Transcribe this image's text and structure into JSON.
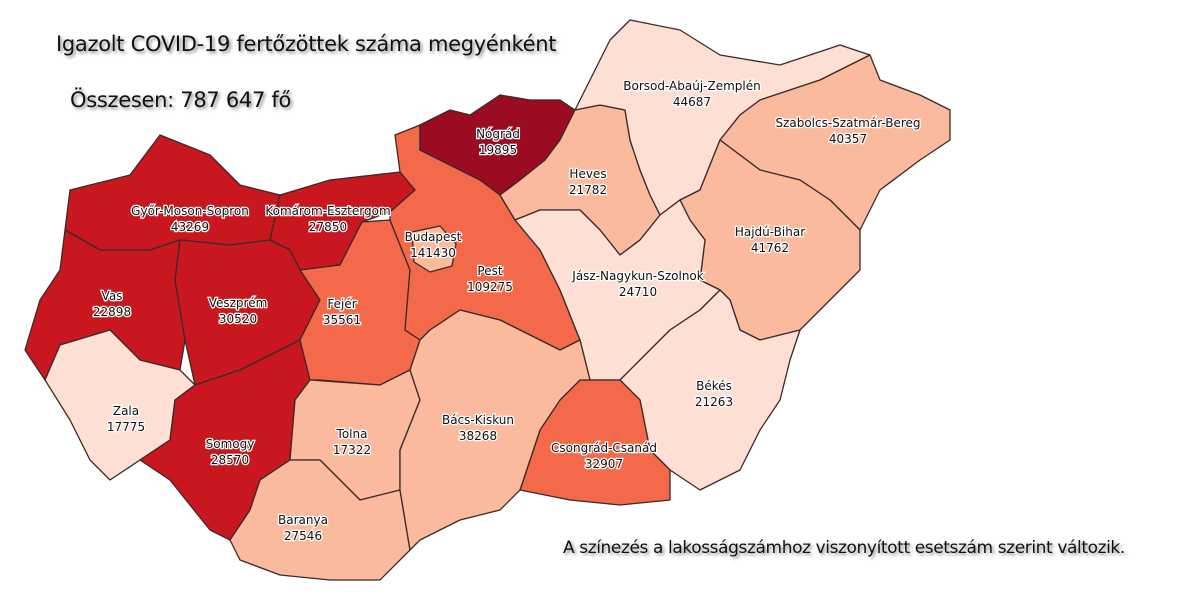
{
  "title": "Igazolt COVID-19 fertőzöttek száma megyénként",
  "total": "Összesen: 787 647 fő",
  "note": "A színezés a lakosságszámhoz viszonyított esetszám szerint változik.",
  "colors": {
    "darkest": "#9b0b22",
    "dark": "#c8171e",
    "orange": "#f4694a",
    "medium": "#fbb99d",
    "light": "#fde0d3"
  },
  "counties": [
    {
      "name": "Győr-Moson-Sopron",
      "value": "43269",
      "shade": "dark"
    },
    {
      "name": "Komárom-Esztergom",
      "value": "27850",
      "shade": "dark"
    },
    {
      "name": "Vas",
      "value": "22898",
      "shade": "dark"
    },
    {
      "name": "Veszprém",
      "value": "30520",
      "shade": "dark"
    },
    {
      "name": "Zala",
      "value": "17775",
      "shade": "light"
    },
    {
      "name": "Somogy",
      "value": "28570",
      "shade": "dark"
    },
    {
      "name": "Fejér",
      "value": "35561",
      "shade": "orange"
    },
    {
      "name": "Tolna",
      "value": "17322",
      "shade": "medium"
    },
    {
      "name": "Baranya",
      "value": "27546",
      "shade": "medium"
    },
    {
      "name": "Pest",
      "value": "109275",
      "shade": "orange"
    },
    {
      "name": "Budapest",
      "value": "141430",
      "shade": "medium"
    },
    {
      "name": "Nógrád",
      "value": "19895",
      "shade": "darkest"
    },
    {
      "name": "Heves",
      "value": "21782",
      "shade": "medium"
    },
    {
      "name": "Borsod-Abaúj-Zemplén",
      "value": "44687",
      "shade": "light"
    },
    {
      "name": "Szabolcs-Szatmár-Bereg",
      "value": "40357",
      "shade": "medium"
    },
    {
      "name": "Hajdú-Bihar",
      "value": "41762",
      "shade": "medium"
    },
    {
      "name": "Jász-Nagykun-Szolnok",
      "value": "24710",
      "shade": "light"
    },
    {
      "name": "Békés",
      "value": "21263",
      "shade": "light"
    },
    {
      "name": "Csongrád-Csanád",
      "value": "32907",
      "shade": "orange"
    },
    {
      "name": "Bács-Kiskun",
      "value": "38268",
      "shade": "medium"
    }
  ]
}
